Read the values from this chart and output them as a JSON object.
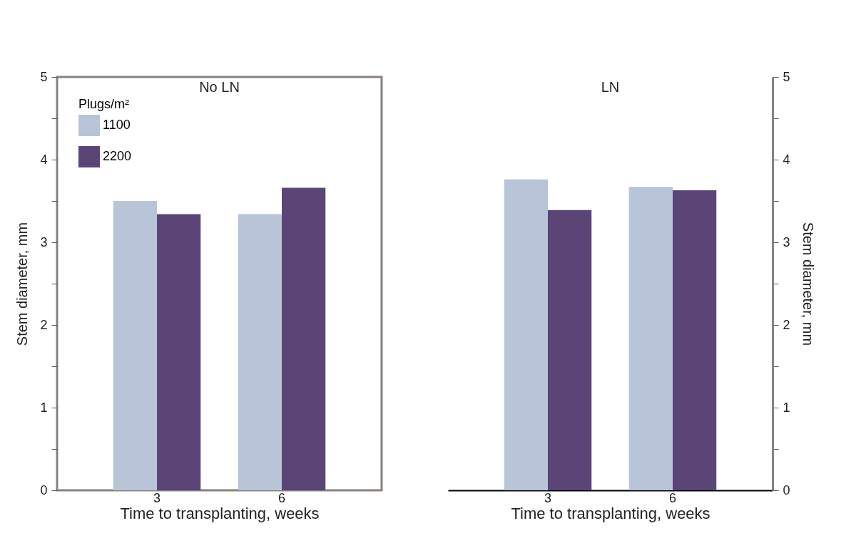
{
  "chart_data": [
    {
      "type": "bar",
      "title": "No LN",
      "categories": [
        "3",
        "6"
      ],
      "xlabel": "Time to transplanting, weeks",
      "ylabel": "Stem diameter, mm",
      "legend_title": "Plugs/m²",
      "legend": "top left",
      "series": [
        {
          "name": "1100",
          "color": "#b8c4d8",
          "values": [
            3.5,
            3.34
          ]
        },
        {
          "name": "2200",
          "color": "#5b4577",
          "values": [
            3.34,
            3.66
          ]
        }
      ],
      "ylim": [
        0,
        5
      ],
      "yticks": [
        0,
        {
          "value": 0.5,
          "label": null
        },
        1,
        {
          "value": 1.5,
          "label": null
        },
        2,
        {
          "value": 2.5,
          "label": null
        },
        3,
        {
          "value": 3.5,
          "label": null
        },
        4,
        {
          "value": 4.5,
          "label": null
        },
        5
      ]
    },
    {
      "type": "bar",
      "title": "LN",
      "categories": [
        "3",
        "6"
      ],
      "xlabel": "Time to transplanting, weeks",
      "y2label": "Stem diameter, mm",
      "series": [
        {
          "color": "#b8c4d8",
          "values": [
            3.76,
            3.67
          ],
          "axis": "y2"
        },
        {
          "color": "#5b4577",
          "values": [
            3.39,
            3.63
          ],
          "axis": "y2"
        }
      ],
      "y2lim": [
        0,
        5
      ],
      "y2ticks": [
        0,
        {
          "value": 0.5,
          "label": null
        },
        1,
        {
          "value": 1.5,
          "label": null
        },
        2,
        {
          "value": 2.5,
          "label": null
        },
        3,
        {
          "value": 3.5,
          "label": null
        },
        4,
        {
          "value": 4.5,
          "label": null
        },
        5
      ]
    }
  ]
}
